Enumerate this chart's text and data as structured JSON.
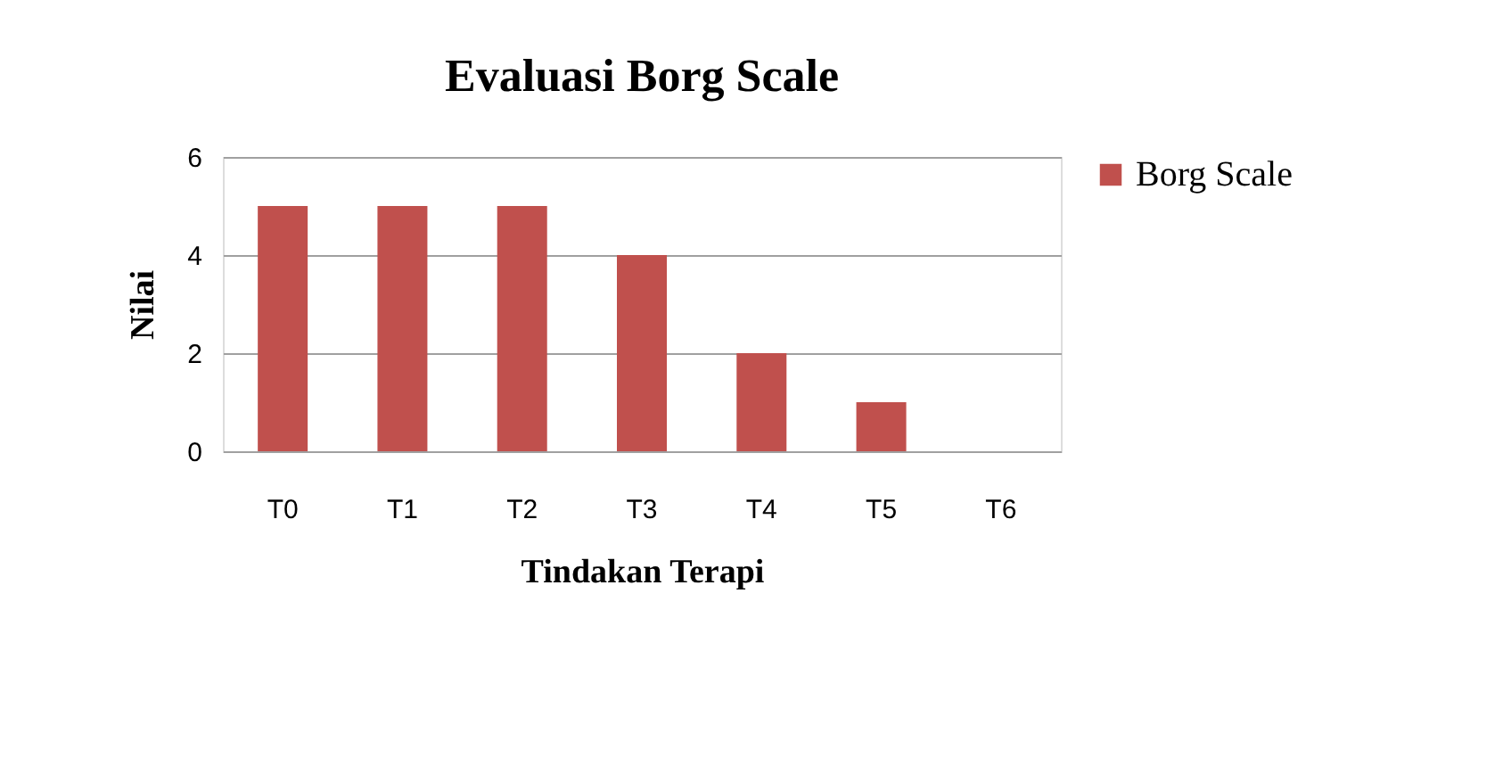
{
  "chart_data": {
    "type": "bar",
    "title": "Evaluasi Borg Scale",
    "xlabel": "Tindakan Terapi",
    "ylabel": "Nilai",
    "categories": [
      "T0",
      "T1",
      "T2",
      "T3",
      "T4",
      "T5",
      "T6"
    ],
    "series": [
      {
        "name": "Borg Scale",
        "color": "#c0504d",
        "values": [
          5,
          5,
          5,
          4,
          2,
          1,
          0
        ]
      }
    ],
    "ylim": [
      0,
      6
    ],
    "yticks": [
      0,
      2,
      4,
      6
    ],
    "grid": "y",
    "legend": "right"
  }
}
